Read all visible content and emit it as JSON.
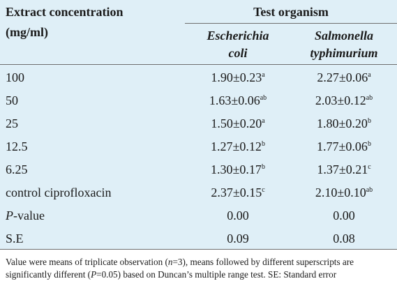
{
  "header": {
    "col1_line1": "Extract concentration",
    "col1_line2": "(mg/ml)",
    "group": "Test organism",
    "org1_line1": "Escherichia",
    "org1_line2": "coli",
    "org2_line1": "Salmonella",
    "org2_line2": "typhimurium"
  },
  "rows": [
    {
      "label": "100",
      "a_val": "1.90±0.23",
      "a_sup": "a",
      "b_val": "2.27±0.06",
      "b_sup": "a"
    },
    {
      "label": "50",
      "a_val": "1.63±0.06",
      "a_sup": "ab",
      "b_val": "2.03±0.12",
      "b_sup": "ab"
    },
    {
      "label": "25",
      "a_val": "1.50±0.20",
      "a_sup": "a",
      "b_val": "1.80±0.20",
      "b_sup": "b"
    },
    {
      "label": "12.5",
      "a_val": "1.27±0.12",
      "a_sup": "b",
      "b_val": "1.77±0.06",
      "b_sup": "b"
    },
    {
      "label": "6.25",
      "a_val": "1.30±0.17",
      "a_sup": "b",
      "b_val": "1.37±0.21",
      "b_sup": "c"
    },
    {
      "label": "control ciprofloxacin",
      "a_val": "2.37±0.15",
      "a_sup": "c",
      "b_val": "2.10±0.10",
      "b_sup": "ab"
    }
  ],
  "pvalue": {
    "label_italic": "P",
    "label_rest": "-value",
    "a": "0.00",
    "b": "0.00"
  },
  "se": {
    "label": "S.E",
    "a": "0.09",
    "b": "0.08"
  },
  "footnote": {
    "t1": "Value were means of triplicate observation (",
    "n": "n",
    "t2": "=3), means followed by different superscripts are significantly different (",
    "p": "P",
    "t3": "=0.05) based on Duncan’s multiple range test. SE: Standard error"
  }
}
